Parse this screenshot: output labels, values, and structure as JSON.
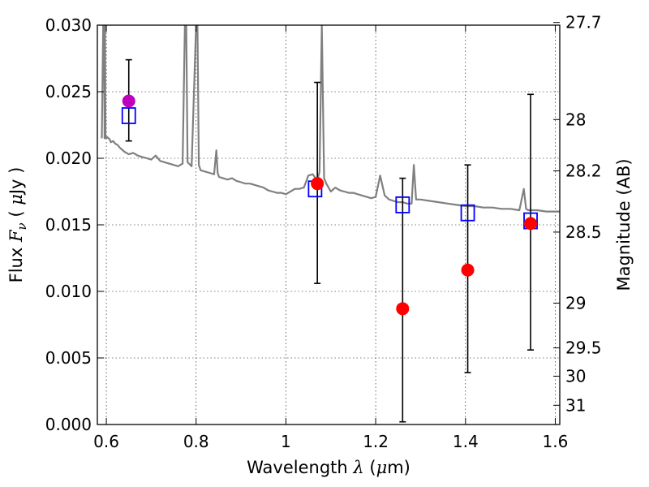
{
  "chart_data": {
    "type": "scatter",
    "xlabel": {
      "prefix": "Wavelength  ",
      "symbol": "λ",
      "unit_open": " (",
      "unit_sym": "μ",
      "unit_rest": "m)"
    },
    "ylabel": {
      "prefix": "Flux  ",
      "symbol": "F",
      "sub": "ν",
      "unit_open": "  ( ",
      "unit_sym": "μ",
      "unit_rest": "Jy )"
    },
    "y2label": "Magnitude (AB)",
    "xlim": [
      0.58,
      1.61
    ],
    "ylim": [
      0.0,
      0.03
    ],
    "x_ticks": [
      {
        "v": 0.6,
        "label": "0.6"
      },
      {
        "v": 0.8,
        "label": "0.8"
      },
      {
        "v": 1.0,
        "label": "1"
      },
      {
        "v": 1.2,
        "label": "1.2"
      },
      {
        "v": 1.4,
        "label": "1.4"
      },
      {
        "v": 1.6,
        "label": "1.6"
      }
    ],
    "y_ticks": [
      {
        "v": 0.0,
        "label": "0.000"
      },
      {
        "v": 0.005,
        "label": "0.005"
      },
      {
        "v": 0.01,
        "label": "0.010"
      },
      {
        "v": 0.015,
        "label": "0.015"
      },
      {
        "v": 0.02,
        "label": "0.020"
      },
      {
        "v": 0.025,
        "label": "0.025"
      },
      {
        "v": 0.03,
        "label": "0.030"
      }
    ],
    "y2_ticks": [
      {
        "mag": 27.7,
        "label": "27.7"
      },
      {
        "mag": 28,
        "label": "28"
      },
      {
        "mag": 28.2,
        "label": "28.2"
      },
      {
        "mag": 28.5,
        "label": "28.5"
      },
      {
        "mag": 29,
        "label": "29"
      },
      {
        "mag": 29.5,
        "label": "29.5"
      },
      {
        "mag": 30,
        "label": "30"
      },
      {
        "mag": 31,
        "label": "31"
      }
    ],
    "grid": true,
    "colors": {
      "sed": "#808080",
      "model": "#0000ff",
      "observed": "#ff0000",
      "optical": "#bf00bf",
      "errorbar": "#000000"
    },
    "series": [
      {
        "kind": "line",
        "x": [
          0.59,
          0.593,
          0.595,
          0.596,
          0.597,
          0.598,
          0.6,
          0.602,
          0.605,
          0.608,
          0.61,
          0.615,
          0.62,
          0.625,
          0.63,
          0.64,
          0.65,
          0.66,
          0.67,
          0.68,
          0.69,
          0.7,
          0.71,
          0.72,
          0.73,
          0.74,
          0.75,
          0.76,
          0.77,
          0.775,
          0.778,
          0.781,
          0.79,
          0.8,
          0.803,
          0.806,
          0.81,
          0.82,
          0.83,
          0.84,
          0.845,
          0.848,
          0.851,
          0.86,
          0.87,
          0.88,
          0.89,
          0.9,
          0.91,
          0.92,
          0.93,
          0.94,
          0.95,
          0.96,
          0.97,
          0.98,
          0.99,
          1.0,
          1.01,
          1.02,
          1.03,
          1.04,
          1.05,
          1.06,
          1.07,
          1.075,
          1.08,
          1.085,
          1.09,
          1.1,
          1.11,
          1.12,
          1.13,
          1.14,
          1.15,
          1.16,
          1.17,
          1.18,
          1.19,
          1.2,
          1.21,
          1.22,
          1.23,
          1.24,
          1.25,
          1.26,
          1.27,
          1.28,
          1.285,
          1.29,
          1.3,
          1.32,
          1.34,
          1.36,
          1.38,
          1.4,
          1.42,
          1.44,
          1.46,
          1.48,
          1.5,
          1.52,
          1.53,
          1.535,
          1.54,
          1.55,
          1.56,
          1.58,
          1.6,
          1.61
        ],
        "y": [
          0.0215,
          0.03,
          0.03,
          0.0215,
          0.03,
          0.0216,
          0.0215,
          0.0216,
          0.0215,
          0.0214,
          0.0212,
          0.0213,
          0.0211,
          0.021,
          0.0208,
          0.0205,
          0.0203,
          0.0204,
          0.0202,
          0.0201,
          0.02,
          0.0199,
          0.0202,
          0.0198,
          0.0197,
          0.0196,
          0.0195,
          0.0194,
          0.0196,
          0.03,
          0.03,
          0.0197,
          0.0194,
          0.03,
          0.03,
          0.0195,
          0.0191,
          0.019,
          0.0189,
          0.0188,
          0.0206,
          0.0189,
          0.0186,
          0.0185,
          0.0184,
          0.0185,
          0.0183,
          0.0182,
          0.0181,
          0.0181,
          0.018,
          0.0179,
          0.0178,
          0.0176,
          0.0175,
          0.0174,
          0.0174,
          0.0173,
          0.0175,
          0.0177,
          0.0177,
          0.0178,
          0.0187,
          0.0188,
          0.0183,
          0.019,
          0.03,
          0.0185,
          0.0181,
          0.0175,
          0.0178,
          0.0176,
          0.0175,
          0.0174,
          0.0174,
          0.0173,
          0.0172,
          0.0171,
          0.017,
          0.0171,
          0.0187,
          0.0172,
          0.0169,
          0.0168,
          0.0167,
          0.0167,
          0.0166,
          0.0166,
          0.0195,
          0.0169,
          0.0169,
          0.0168,
          0.0167,
          0.0166,
          0.0165,
          0.0164,
          0.0164,
          0.0163,
          0.0163,
          0.0162,
          0.0162,
          0.0161,
          0.0177,
          0.0162,
          0.0161,
          0.0161,
          0.0161,
          0.016,
          0.016,
          0.016
        ]
      },
      {
        "kind": "squares",
        "x": [
          0.65,
          1.065,
          1.26,
          1.405,
          1.545
        ],
        "y": [
          0.0232,
          0.0177,
          0.0165,
          0.0159,
          0.0153
        ]
      },
      {
        "kind": "points",
        "x": [
          0.65,
          1.07,
          1.26,
          1.405,
          1.545
        ],
        "y": [
          0.0243,
          0.0181,
          0.0087,
          0.0116,
          0.0151
        ],
        "colors": [
          "#bf00bf",
          "#ff0000",
          "#ff0000",
          "#ff0000",
          "#ff0000"
        ],
        "yerr_low": [
          0.0213,
          0.0106,
          0.0002,
          0.0039,
          0.0056
        ],
        "yerr_high": [
          0.0274,
          0.0257,
          0.0185,
          0.0195,
          0.0248
        ]
      }
    ]
  }
}
